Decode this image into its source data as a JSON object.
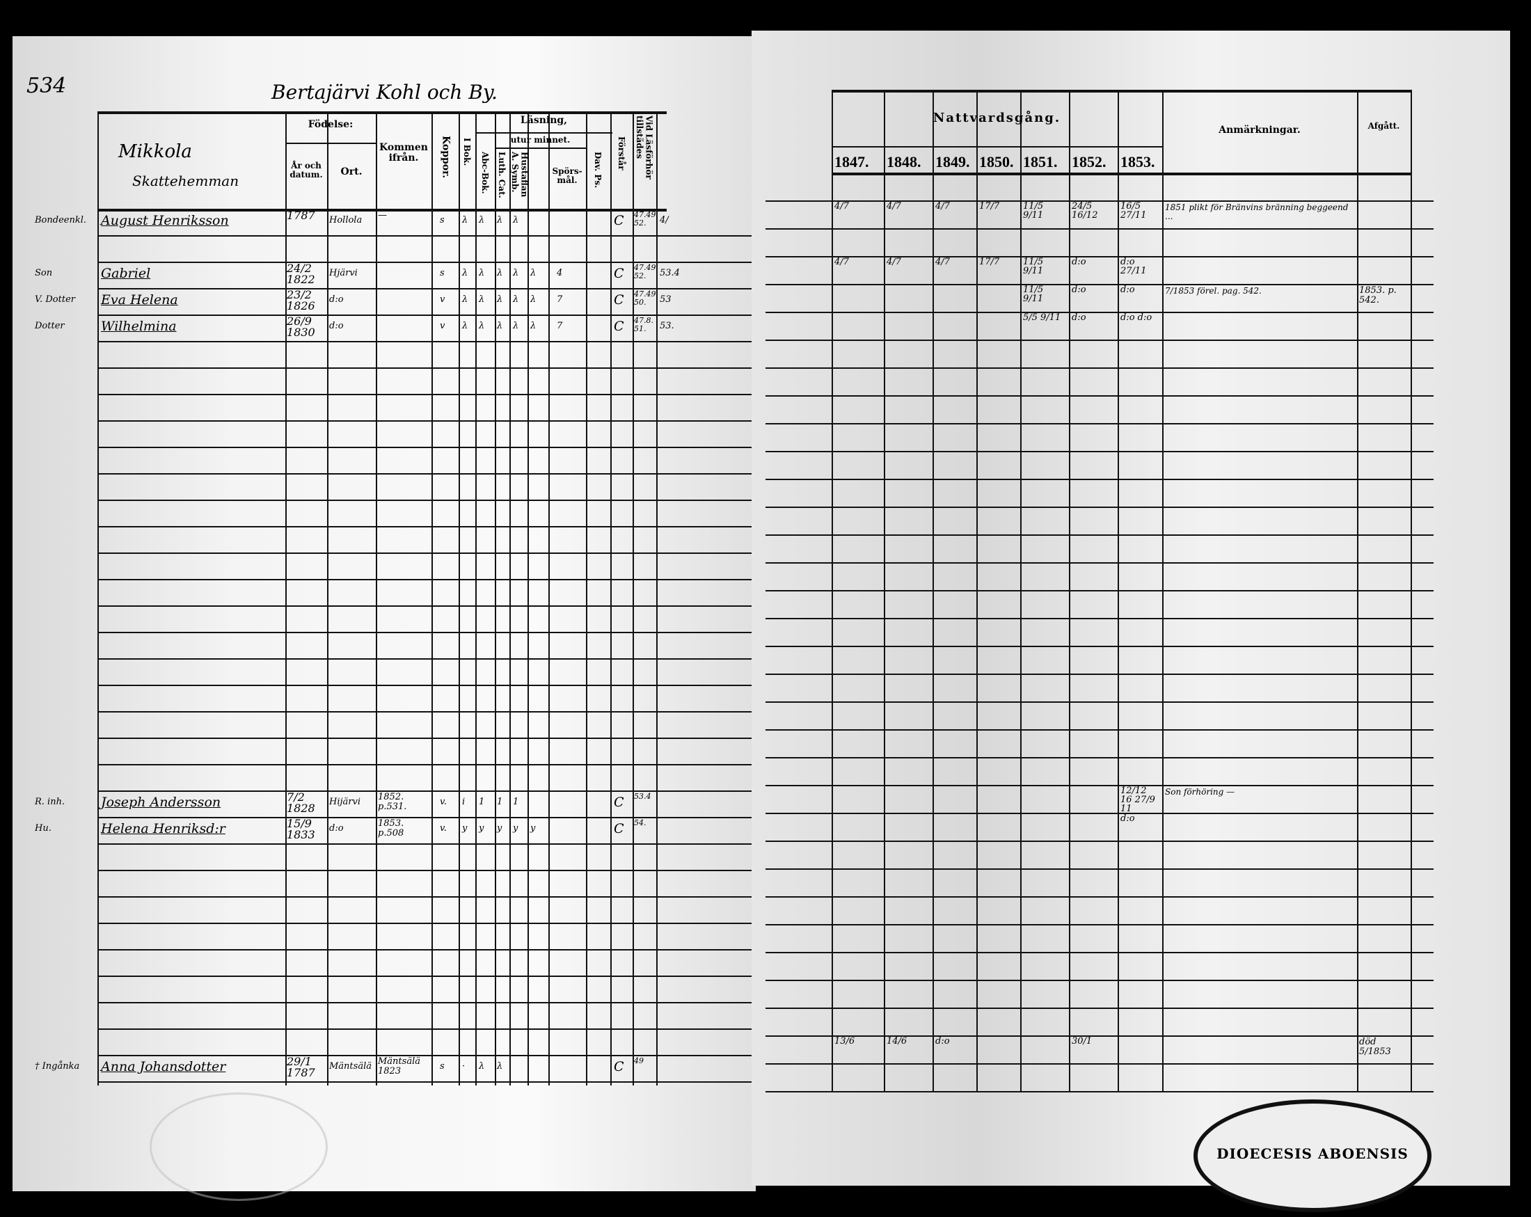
{
  "page_number": "534",
  "village_title": "Bertajärvi Kohl och By.",
  "left_headers": {
    "name_col": [
      "Mikkola",
      "Skattehemman"
    ],
    "fodelse": "Födelse:",
    "ar_och_datum": "År och datum.",
    "ort": "Ort.",
    "kommen_ifran": "Kommen ifrån.",
    "koppor": "Koppor.",
    "lasning": "Läsning,",
    "utur_minnet": "utur minnet.",
    "i_bok": "I Bok.",
    "abc_bok": "Abc-Bok.",
    "luth_cat": "Luth. Cat.",
    "hustaflan": "Hustaflan A. Symb.",
    "sporsmal": "Spörs-mål.",
    "dav_ps": "Dav. Ps.",
    "forstar": "Förstår",
    "lasforhor": "Vid Läsförhör tillstädes"
  },
  "right_headers": {
    "nattvardsgang": "Nattvardsgång.",
    "years": [
      "1847.",
      "1848.",
      "1849.",
      "1850.",
      "1851.",
      "1852.",
      "1853."
    ],
    "anmarkningar": "Anmärkningar.",
    "afgatt": "Afgått."
  },
  "persons": [
    {
      "relation": "Bondeenkl.",
      "name": "August Henriksson",
      "birth": "1787",
      "place": "Hollola",
      "from": "—",
      "koppor": "s",
      "marks": [
        "λ",
        "λ",
        "λ",
        "λ",
        "",
        "",
        ""
      ],
      "forstar": "C",
      "forhor": "47.49 52.",
      "extra": "4/",
      "years": [
        "4/7",
        "4/7",
        "4/7",
        "17/7",
        "11/5 9/11",
        "24/5 16/12",
        "16/5 27/11"
      ],
      "remark": "1851 plikt för Bränvins bränning beggeend ..."
    },
    {
      "relation": "Son",
      "name": "Gabriel",
      "birth": "24/2 1822",
      "place": "Hjärvi",
      "from": "",
      "koppor": "s",
      "marks": [
        "λ",
        "λ",
        "λ",
        "λ",
        "λ",
        "4",
        ""
      ],
      "forstar": "C",
      "forhor": "47.49 52.",
      "extra": "53.4",
      "years": [
        "4/7",
        "4/7",
        "4/7",
        "17/7",
        "11/5 9/11",
        "d:o",
        "d:o 27/11"
      ],
      "remark": ""
    },
    {
      "relation": "V. Dotter",
      "name": "Eva Helena",
      "birth": "23/2 1826",
      "place": "d:o",
      "from": "",
      "koppor": "v",
      "marks": [
        "λ",
        "λ",
        "λ",
        "λ",
        "λ",
        "7",
        ""
      ],
      "forstar": "C",
      "forhor": "47.49 50.",
      "extra": "53",
      "years": [
        "",
        "",
        "",
        "",
        "11/5 9/11",
        "d:o",
        "d:o"
      ],
      "remark": "7/1853 förel. pag. 542.",
      "afgatt": "1853. p. 542."
    },
    {
      "relation": "Dotter",
      "name": "Wilhelmina",
      "birth": "26/9 1830",
      "place": "d:o",
      "from": "",
      "koppor": "v",
      "marks": [
        "λ",
        "λ",
        "λ",
        "λ",
        "λ",
        "7",
        ""
      ],
      "forstar": "C",
      "forhor": "47.8. 51.",
      "extra": "53.",
      "years": [
        "",
        "",
        "",
        "",
        "5/5 9/11",
        "d:o",
        "d:o d:o"
      ],
      "remark": ""
    },
    {
      "relation": "R. inh.",
      "name": "Joseph Andersson",
      "birth": "7/2 1828",
      "place": "Hijärvi",
      "from": "1852. p.531.",
      "koppor": "v.",
      "marks": [
        "i",
        "1",
        "1",
        "1",
        "",
        "",
        ""
      ],
      "forstar": "C",
      "forhor": "53.4",
      "extra": "",
      "years": [
        "",
        "",
        "",
        "",
        "",
        "",
        "12/12 16 27/9 11"
      ],
      "remark": "Son förhöring —"
    },
    {
      "relation": "Hu.",
      "name": "Helena Henriksd:r",
      "birth": "15/9 1833",
      "place": "d:o",
      "from": "1853. p.508",
      "koppor": "v.",
      "marks": [
        "y",
        "y",
        "y",
        "y",
        "y",
        "",
        ""
      ],
      "forstar": "C",
      "forhor": "54.",
      "extra": "",
      "years": [
        "",
        "",
        "",
        "",
        "",
        "",
        "d:o"
      ],
      "remark": ""
    },
    {
      "relation": "† Ingånka",
      "name": "Anna Johansdotter",
      "birth": "29/1 1787",
      "place": "Mäntsälä",
      "from": "Mäntsälä 1823",
      "koppor": "s",
      "marks": [
        "·",
        "λ",
        "λ",
        "",
        "",
        "",
        ""
      ],
      "forstar": "C",
      "forhor": "49",
      "extra": "",
      "years": [
        "13/6",
        "14/6",
        "d:o",
        "",
        "",
        "30/1",
        ""
      ],
      "remark": "",
      "afgatt": "död 5/1853"
    }
  ],
  "stamp_text": "DIOECESIS ABOENSIS"
}
